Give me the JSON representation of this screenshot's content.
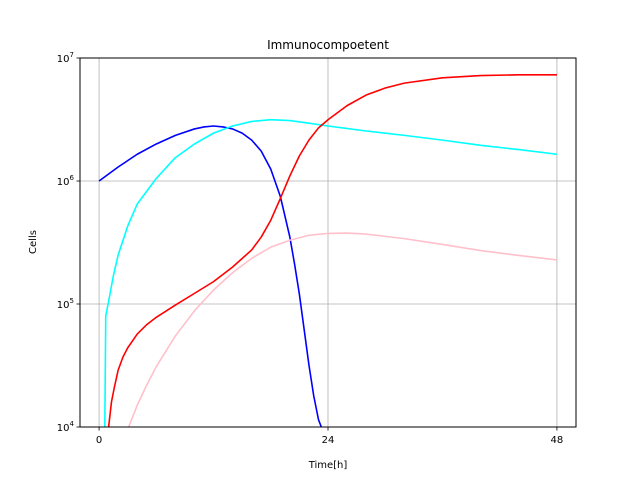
{
  "chart_data": {
    "type": "line",
    "title": "Immunocompoetent",
    "xlabel": "Time[h]",
    "ylabel": "Cells",
    "yscale": "log",
    "xlim": [
      -2,
      50
    ],
    "ylim": [
      10000,
      10000000
    ],
    "xticks": [
      0,
      24,
      48
    ],
    "xtick_labels": [
      "0",
      "24",
      "48"
    ],
    "yticks": [
      10000,
      100000,
      1000000,
      10000000
    ],
    "ytick_labels": [
      {
        "base": "10",
        "exp": "4"
      },
      {
        "base": "10",
        "exp": "5"
      },
      {
        "base": "10",
        "exp": "6"
      },
      {
        "base": "10",
        "exp": "7"
      }
    ],
    "grid": true,
    "series": [
      {
        "color": "#0000ff",
        "x": [
          0,
          2,
          4,
          6,
          8,
          10,
          11,
          12,
          13,
          14,
          15,
          16,
          17,
          18,
          19,
          20,
          20.5,
          21,
          21.5,
          22,
          22.5,
          23,
          23.3
        ],
        "y": [
          1000000,
          1300000,
          1650000,
          2000000,
          2350000,
          2650000,
          2750000,
          2800000,
          2750000,
          2650000,
          2450000,
          2150000,
          1750000,
          1250000,
          750000,
          350000,
          210000,
          120000,
          62000,
          32000,
          18000,
          11500,
          10000
        ]
      },
      {
        "color": "#00ffff",
        "x": [
          0.6,
          0.7,
          1,
          1.5,
          2,
          3,
          4,
          6,
          8,
          10,
          12,
          14,
          16,
          18,
          20,
          22,
          24,
          28,
          32,
          36,
          40,
          44,
          48
        ],
        "y": [
          10000,
          80000,
          105000,
          170000,
          250000,
          430000,
          650000,
          1050000,
          1550000,
          2000000,
          2450000,
          2800000,
          3050000,
          3150000,
          3100000,
          2950000,
          2800000,
          2550000,
          2350000,
          2150000,
          1950000,
          1800000,
          1650000
        ]
      },
      {
        "color": "#ff0000",
        "x": [
          1,
          1.3,
          1.6,
          2,
          2.5,
          3,
          4,
          5,
          6,
          8,
          10,
          12,
          14,
          16,
          17,
          18,
          19,
          20,
          21,
          22,
          23,
          24,
          26,
          28,
          30,
          32,
          36,
          40,
          44,
          48
        ],
        "y": [
          10000,
          16000,
          21000,
          29000,
          37000,
          44000,
          57000,
          68000,
          78000,
          98000,
          122000,
          152000,
          200000,
          275000,
          350000,
          480000,
          720000,
          1100000,
          1600000,
          2150000,
          2700000,
          3150000,
          4100000,
          5000000,
          5700000,
          6250000,
          6900000,
          7200000,
          7300000,
          7300000
        ]
      },
      {
        "color": "#ffc0cb",
        "x": [
          3.1,
          4,
          5,
          6,
          8,
          10,
          12,
          14,
          16,
          18,
          20,
          22,
          24,
          26,
          28,
          32,
          36,
          40,
          44,
          48
        ],
        "y": [
          10000,
          15000,
          22000,
          31000,
          55000,
          88000,
          130000,
          180000,
          235000,
          290000,
          330000,
          362000,
          375000,
          377000,
          370000,
          340000,
          305000,
          272000,
          248000,
          228000
        ]
      }
    ]
  }
}
